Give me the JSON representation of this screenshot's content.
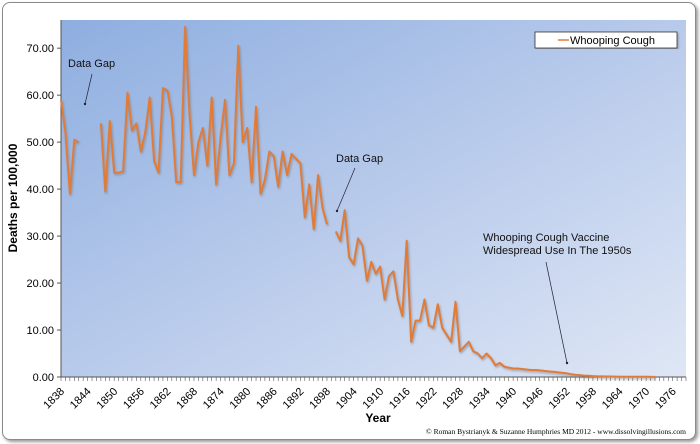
{
  "chart_data": {
    "type": "line",
    "xlabel": "Year",
    "ylabel": "Deaths per 100,000",
    "ylim": [
      0,
      76
    ],
    "xlim": [
      1838,
      1979
    ],
    "y_ticks": [
      "0.00",
      "10.00",
      "20.00",
      "30.00",
      "40.00",
      "50.00",
      "60.00",
      "70.00"
    ],
    "x_ticks": [
      "1838",
      "1844",
      "1850",
      "1856",
      "1862",
      "1868",
      "1874",
      "1880",
      "1886",
      "1892",
      "1898",
      "1904",
      "1910",
      "1916",
      "1922",
      "1928",
      "1934",
      "1940",
      "1946",
      "1952",
      "1958",
      "1964",
      "1970",
      "1976"
    ],
    "grid": false,
    "legend": "top-right",
    "series": [
      {
        "name": "Whooping Cough",
        "color": "#e07b39",
        "start_year": 1838,
        "values": [
          59,
          52,
          39,
          50.5,
          50,
          null,
          null,
          null,
          null,
          54,
          39.5,
          54.5,
          43.5,
          43.5,
          43.8,
          60.5,
          52.5,
          54,
          48,
          52,
          59.5,
          46,
          43.5,
          61.5,
          61,
          55.5,
          41.5,
          41.5,
          74.5,
          56,
          43,
          50,
          53,
          45,
          59.5,
          41,
          51,
          59,
          43,
          45.5,
          70.5,
          50,
          53,
          41.5,
          57.5,
          39,
          42,
          48,
          47,
          40.5,
          48,
          43,
          47.5,
          46.5,
          45.5,
          34,
          41,
          31.5,
          43,
          36,
          32.5,
          null,
          31,
          29,
          35.5,
          25.5,
          24,
          29.5,
          28,
          20.5,
          24.5,
          22,
          23.5,
          16.5,
          21.5,
          22.5,
          16.5,
          13,
          29,
          7.5,
          12,
          12,
          16.5,
          11,
          10.5,
          15.5,
          10.5,
          9,
          7.5,
          16,
          5.5,
          6.5,
          7.5,
          5.5,
          5,
          4,
          5,
          4,
          2.5,
          3,
          2.2,
          2,
          1.8,
          1.8,
          1.7,
          1.6,
          1.5,
          1.5,
          1.4,
          1.3,
          1.2,
          1.1,
          1.0,
          0.9,
          0.8,
          0.6,
          0.5,
          0.4,
          0.3,
          0.25,
          0.2,
          0.15,
          0.12,
          0.1,
          0.1,
          0.08,
          0.07,
          0.06,
          0.05,
          0.05,
          0.05,
          0.05,
          0.04,
          0.03,
          0.02
        ]
      }
    ],
    "annotations": [
      {
        "text": "Data Gap",
        "year": 1844,
        "value": 52
      },
      {
        "text": "Data Gap",
        "year": 1899,
        "value": 35
      },
      {
        "text": "Whooping Cough Vaccine",
        "text2": "Widespread Use In The 1950s",
        "year": 1953,
        "value": 2
      }
    ]
  },
  "copyright": "© Roman Bystrianyk & Suzanne Humphries MD 2012 - www.dissolvingillusions.com"
}
